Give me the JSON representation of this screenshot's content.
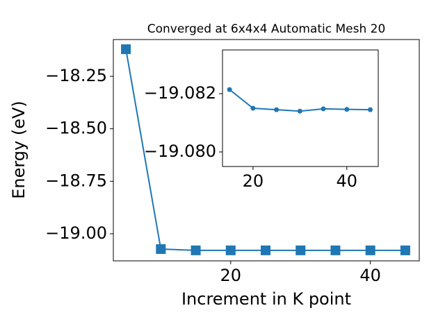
{
  "chart_data": [
    {
      "type": "line",
      "title": "Converged at 6x4x4 Automatic Mesh 20",
      "x_label": "Increment in K point",
      "y_label": "Energy (eV)",
      "x": [
        5,
        10,
        15,
        20,
        25,
        30,
        35,
        40,
        45
      ],
      "series": [
        {
          "color": "#1f77b4",
          "marker": "square",
          "values": [
            -18.121,
            -19.073,
            -19.079,
            -19.079,
            -19.079,
            -19.079,
            -19.079,
            -19.079,
            -19.079
          ]
        }
      ],
      "xlim": [
        3.2,
        47
      ],
      "ylim": [
        -19.129,
        -18.075
      ],
      "xticks": [
        20,
        40
      ],
      "yticks": [
        {
          "value": -18.25,
          "label": "−18.25"
        },
        {
          "value": -18.5,
          "label": "−18.50"
        },
        {
          "value": -18.75,
          "label": "−18.75"
        },
        {
          "value": -19.0,
          "label": "−19.00"
        }
      ]
    },
    {
      "type": "line",
      "x": [
        15,
        20,
        25,
        30,
        35,
        40,
        45
      ],
      "series": [
        {
          "color": "#1f77b4",
          "marker": "circle",
          "values": [
            -19.08214,
            -19.0815,
            -19.08145,
            -19.0814,
            -19.08148,
            -19.08146,
            -19.08145
          ]
        }
      ],
      "xlim": [
        13.5,
        46.7
      ],
      "ylim": [
        -19.0795,
        -19.0835
      ],
      "xticks": [
        20,
        40
      ],
      "yticks": [
        {
          "value": -19.082,
          "label": "−19.082"
        },
        {
          "value": -19.08,
          "label": "−19.080"
        }
      ]
    }
  ]
}
